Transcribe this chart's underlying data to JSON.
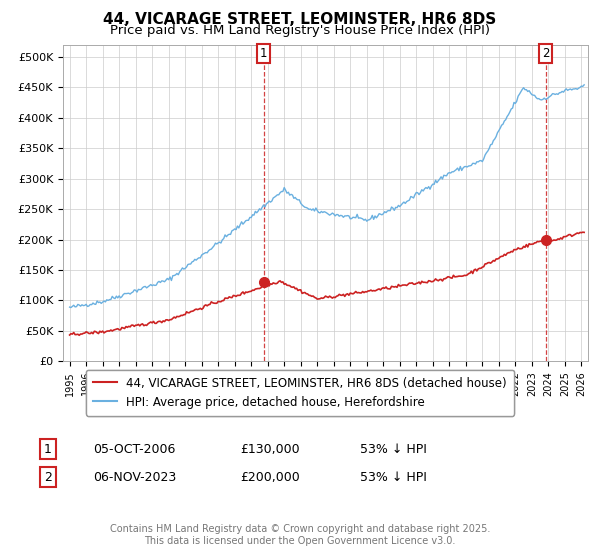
{
  "title": "44, VICARAGE STREET, LEOMINSTER, HR6 8DS",
  "subtitle": "Price paid vs. HM Land Registry's House Price Index (HPI)",
  "ylim": [
    0,
    520000
  ],
  "ytick_values": [
    0,
    50000,
    100000,
    150000,
    200000,
    250000,
    300000,
    350000,
    400000,
    450000,
    500000
  ],
  "ytick_labels": [
    "£0",
    "£50K",
    "£100K",
    "£150K",
    "£200K",
    "£250K",
    "£300K",
    "£350K",
    "£400K",
    "£450K",
    "£500K"
  ],
  "hpi_color": "#6ab0e0",
  "price_color": "#cc2222",
  "sale1_month_idx": 141,
  "sale1_price": 130000,
  "sale2_month_idx": 346,
  "sale2_price": 200000,
  "legend_house_label": "44, VICARAGE STREET, LEOMINSTER, HR6 8DS (detached house)",
  "legend_hpi_label": "HPI: Average price, detached house, Herefordshire",
  "ann1_num": "1",
  "ann1_date": "05-OCT-2006",
  "ann1_price": "£130,000",
  "ann1_pct": "53% ↓ HPI",
  "ann2_num": "2",
  "ann2_date": "06-NOV-2023",
  "ann2_price": "£200,000",
  "ann2_pct": "53% ↓ HPI",
  "footer": "Contains HM Land Registry data © Crown copyright and database right 2025.\nThis data is licensed under the Open Government Licence v3.0.",
  "background_color": "#ffffff",
  "grid_color": "#cccccc",
  "title_fontsize": 11,
  "subtitle_fontsize": 9.5,
  "tick_fontsize": 8,
  "legend_fontsize": 8.5,
  "ann_fontsize": 9,
  "footer_fontsize": 7
}
